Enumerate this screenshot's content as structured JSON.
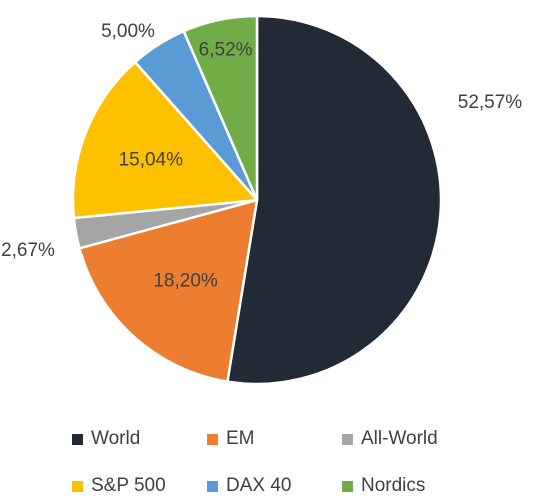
{
  "chart_data": {
    "type": "pie",
    "title": "",
    "categories": [
      "World",
      "EM",
      "All-World",
      "S&P 500",
      "DAX 40",
      "Nordics"
    ],
    "values": [
      52.57,
      18.2,
      2.67,
      15.04,
      5.0,
      6.52
    ],
    "labels": [
      "52,57%",
      "18,20%",
      "2,67%",
      "15,04%",
      "5,00%",
      "6,52%"
    ],
    "colors": [
      "#222a35",
      "#ed7d31",
      "#a5a5a5",
      "#ffc000",
      "#5b9bd5",
      "#70ad47"
    ],
    "legend_position": "bottom"
  }
}
